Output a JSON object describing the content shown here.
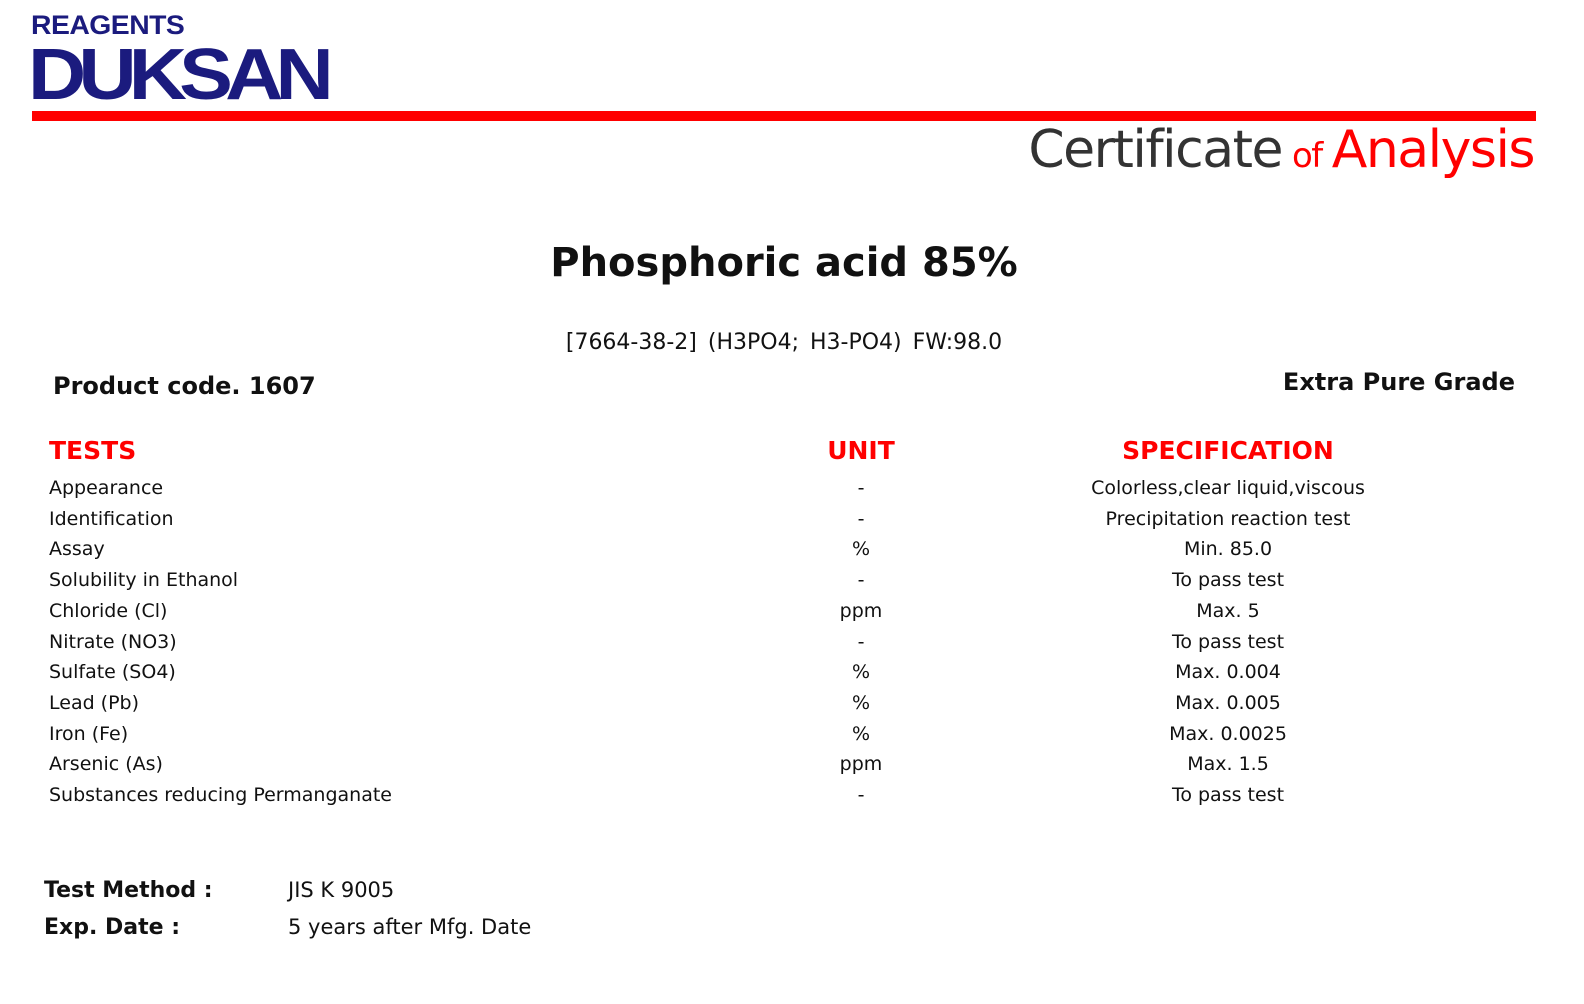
{
  "logo": {
    "line1": "REAGENTS",
    "line2": "DUKSAN",
    "color": "#1b1b7e"
  },
  "header": {
    "certificate": "Certificate",
    "of": "of",
    "analysis": "Analysis",
    "accent": "#ff0000"
  },
  "product": {
    "name": "Phosphoric acid 85%",
    "subtitle": "[7664-38-2]   (H3PO4; H3-PO4)   FW:98.0",
    "code": "Product code. 1607",
    "grade": "Extra Pure Grade"
  },
  "table": {
    "headers": {
      "tests": "TESTS",
      "unit": "UNIT",
      "spec": "SPECIFICATION"
    },
    "rows": [
      {
        "test": "Appearance",
        "unit": "-",
        "spec": "Colorless,clear liquid,viscous"
      },
      {
        "test": "Identification",
        "unit": "-",
        "spec": "Precipitation reaction test"
      },
      {
        "test": "Assay",
        "unit": "%",
        "spec": "Min. 85.0"
      },
      {
        "test": "Solubility in Ethanol",
        "unit": "-",
        "spec": "To pass test"
      },
      {
        "test": "Chloride (Cl)",
        "unit": "ppm",
        "spec": "Max. 5"
      },
      {
        "test": "Nitrate (NO3)",
        "unit": "-",
        "spec": "To pass test"
      },
      {
        "test": "Sulfate (SO4)",
        "unit": "%",
        "spec": "Max. 0.004"
      },
      {
        "test": "Lead (Pb)",
        "unit": "%",
        "spec": "Max. 0.005"
      },
      {
        "test": "Iron (Fe)",
        "unit": "%",
        "spec": "Max. 0.0025"
      },
      {
        "test": "Arsenic (As)",
        "unit": "ppm",
        "spec": "Max. 1.5"
      },
      {
        "test": "Substances reducing Permanganate",
        "unit": "-",
        "spec": "To pass test"
      }
    ]
  },
  "footer": {
    "method_label": "Test Method :",
    "method_value": "JIS K 9005",
    "exp_label": "Exp. Date :",
    "exp_value": "5 years after Mfg. Date"
  }
}
